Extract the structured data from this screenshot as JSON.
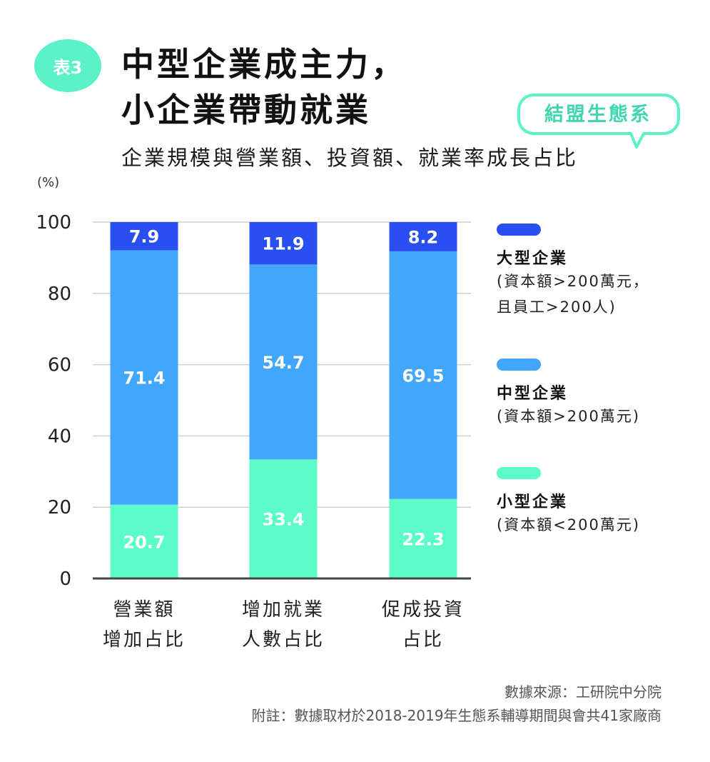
{
  "badge": "表3",
  "title_lines": [
    "中型企業成主力，",
    "小企業帶動就業"
  ],
  "tag": "結盟生態系",
  "subtitle": "企業規模與營業額、投資額、就業率成長占比",
  "unit": "(%)",
  "legend": [
    {
      "title": "大型企業",
      "desc": [
        "(資本額>200萬元，",
        "且員工>200人)"
      ],
      "color": "#2a4ff0"
    },
    {
      "title": "中型企業",
      "desc": [
        "(資本額>200萬元)"
      ],
      "color": "#42a6fb"
    },
    {
      "title": "小型企業",
      "desc": [
        "(資本額<200萬元)"
      ],
      "color": "#5cfcc8"
    }
  ],
  "footer": {
    "source": "數據來源：工研院中分院",
    "note": "附註：數據取材於2018-2019年生態系輔導期間與會共41家廠商"
  },
  "chart_data": {
    "type": "bar",
    "stacked": true,
    "categories": [
      [
        "營業額",
        "增加占比"
      ],
      [
        "增加就業",
        "人數占比"
      ],
      [
        "促成投資",
        "占比"
      ]
    ],
    "series": [
      {
        "name": "小型企業",
        "values": [
          20.7,
          33.4,
          22.3
        ],
        "color": "#5cfcc8"
      },
      {
        "name": "中型企業",
        "values": [
          71.4,
          54.7,
          69.5
        ],
        "color": "#42a6fb"
      },
      {
        "name": "大型企業",
        "values": [
          7.9,
          11.9,
          8.2
        ],
        "color": "#2a4ff0"
      }
    ],
    "ylim": [
      0,
      100
    ],
    "yticks": [
      0,
      20,
      40,
      60,
      80,
      100
    ],
    "grid": true,
    "legend_position": "right"
  }
}
